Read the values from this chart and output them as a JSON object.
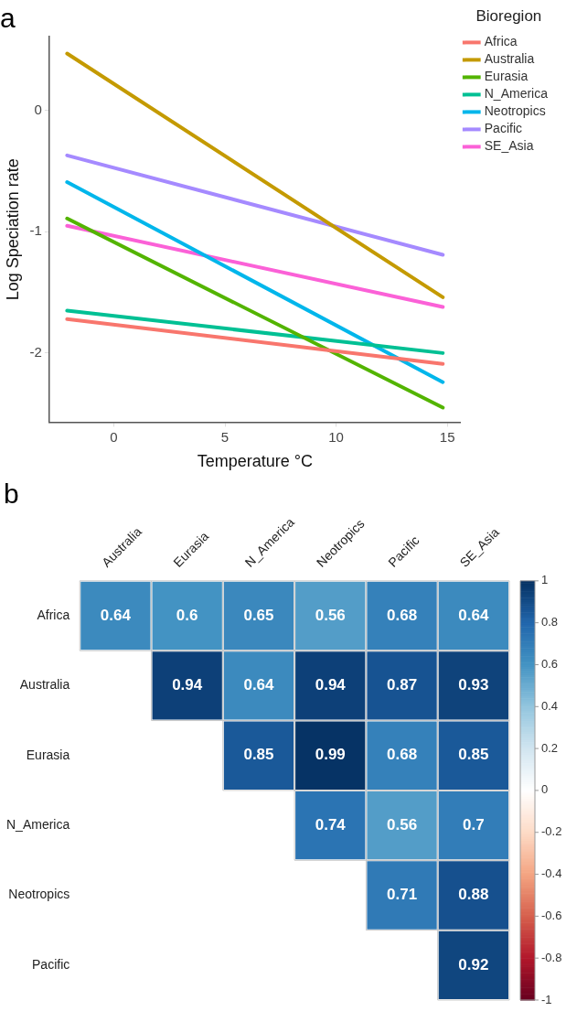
{
  "chart_data": [
    {
      "type": "line",
      "title": "a",
      "xlabel": "Temperature °C",
      "ylabel": "Log Speciation rate",
      "legend_title": "Bioregion",
      "x": [
        -2.1,
        14.8
      ],
      "series": [
        {
          "name": "Africa",
          "color": "#f8766d",
          "values": [
            -1.72,
            -2.09
          ]
        },
        {
          "name": "Australia",
          "color": "#c49a00",
          "values": [
            0.47,
            -1.54
          ]
        },
        {
          "name": "Eurasia",
          "color": "#53b400",
          "values": [
            -0.89,
            -2.45
          ]
        },
        {
          "name": "N_America",
          "color": "#00c094",
          "values": [
            -1.65,
            -2.0
          ]
        },
        {
          "name": "Neotropics",
          "color": "#00b6eb",
          "values": [
            -0.59,
            -2.24
          ]
        },
        {
          "name": "Pacific",
          "color": "#a58aff",
          "values": [
            -0.37,
            -1.19
          ]
        },
        {
          "name": "SE_Asia",
          "color": "#fb61d7",
          "values": [
            -0.95,
            -1.62
          ]
        }
      ],
      "xlim": [
        -2.9,
        15.6
      ],
      "xticks": [
        0,
        5,
        10,
        15
      ],
      "ylim": [
        -2.57,
        0.61
      ],
      "yticks": [
        -2,
        -1,
        0
      ],
      "grid": false,
      "legend": "right",
      "marker": "none",
      "line_style": "solid"
    },
    {
      "type": "heatmap",
      "title": "b",
      "categories": [
        "Australia",
        "Eurasia",
        "N_America",
        "Neotropics",
        "Pacific",
        "SE_Asia"
      ],
      "y_categories": [
        "Africa",
        "Australia",
        "Eurasia",
        "N_America",
        "Neotropics",
        "Pacific"
      ],
      "cells": [
        [
          0.64,
          0.6,
          0.65,
          0.56,
          0.68,
          0.64
        ],
        [
          null,
          0.94,
          0.64,
          0.94,
          0.87,
          0.93
        ],
        [
          null,
          null,
          0.85,
          0.99,
          0.68,
          0.85
        ],
        [
          null,
          null,
          null,
          0.74,
          0.56,
          0.7
        ],
        [
          null,
          null,
          null,
          null,
          0.71,
          0.88
        ],
        [
          null,
          null,
          null,
          null,
          null,
          0.92
        ]
      ],
      "data_labels": true,
      "clim": [
        -1,
        1
      ],
      "cticks": [
        1,
        0.8,
        0.6,
        0.4,
        0.2,
        0,
        -0.2,
        -0.4,
        -0.6,
        -0.8,
        -1
      ]
    }
  ]
}
